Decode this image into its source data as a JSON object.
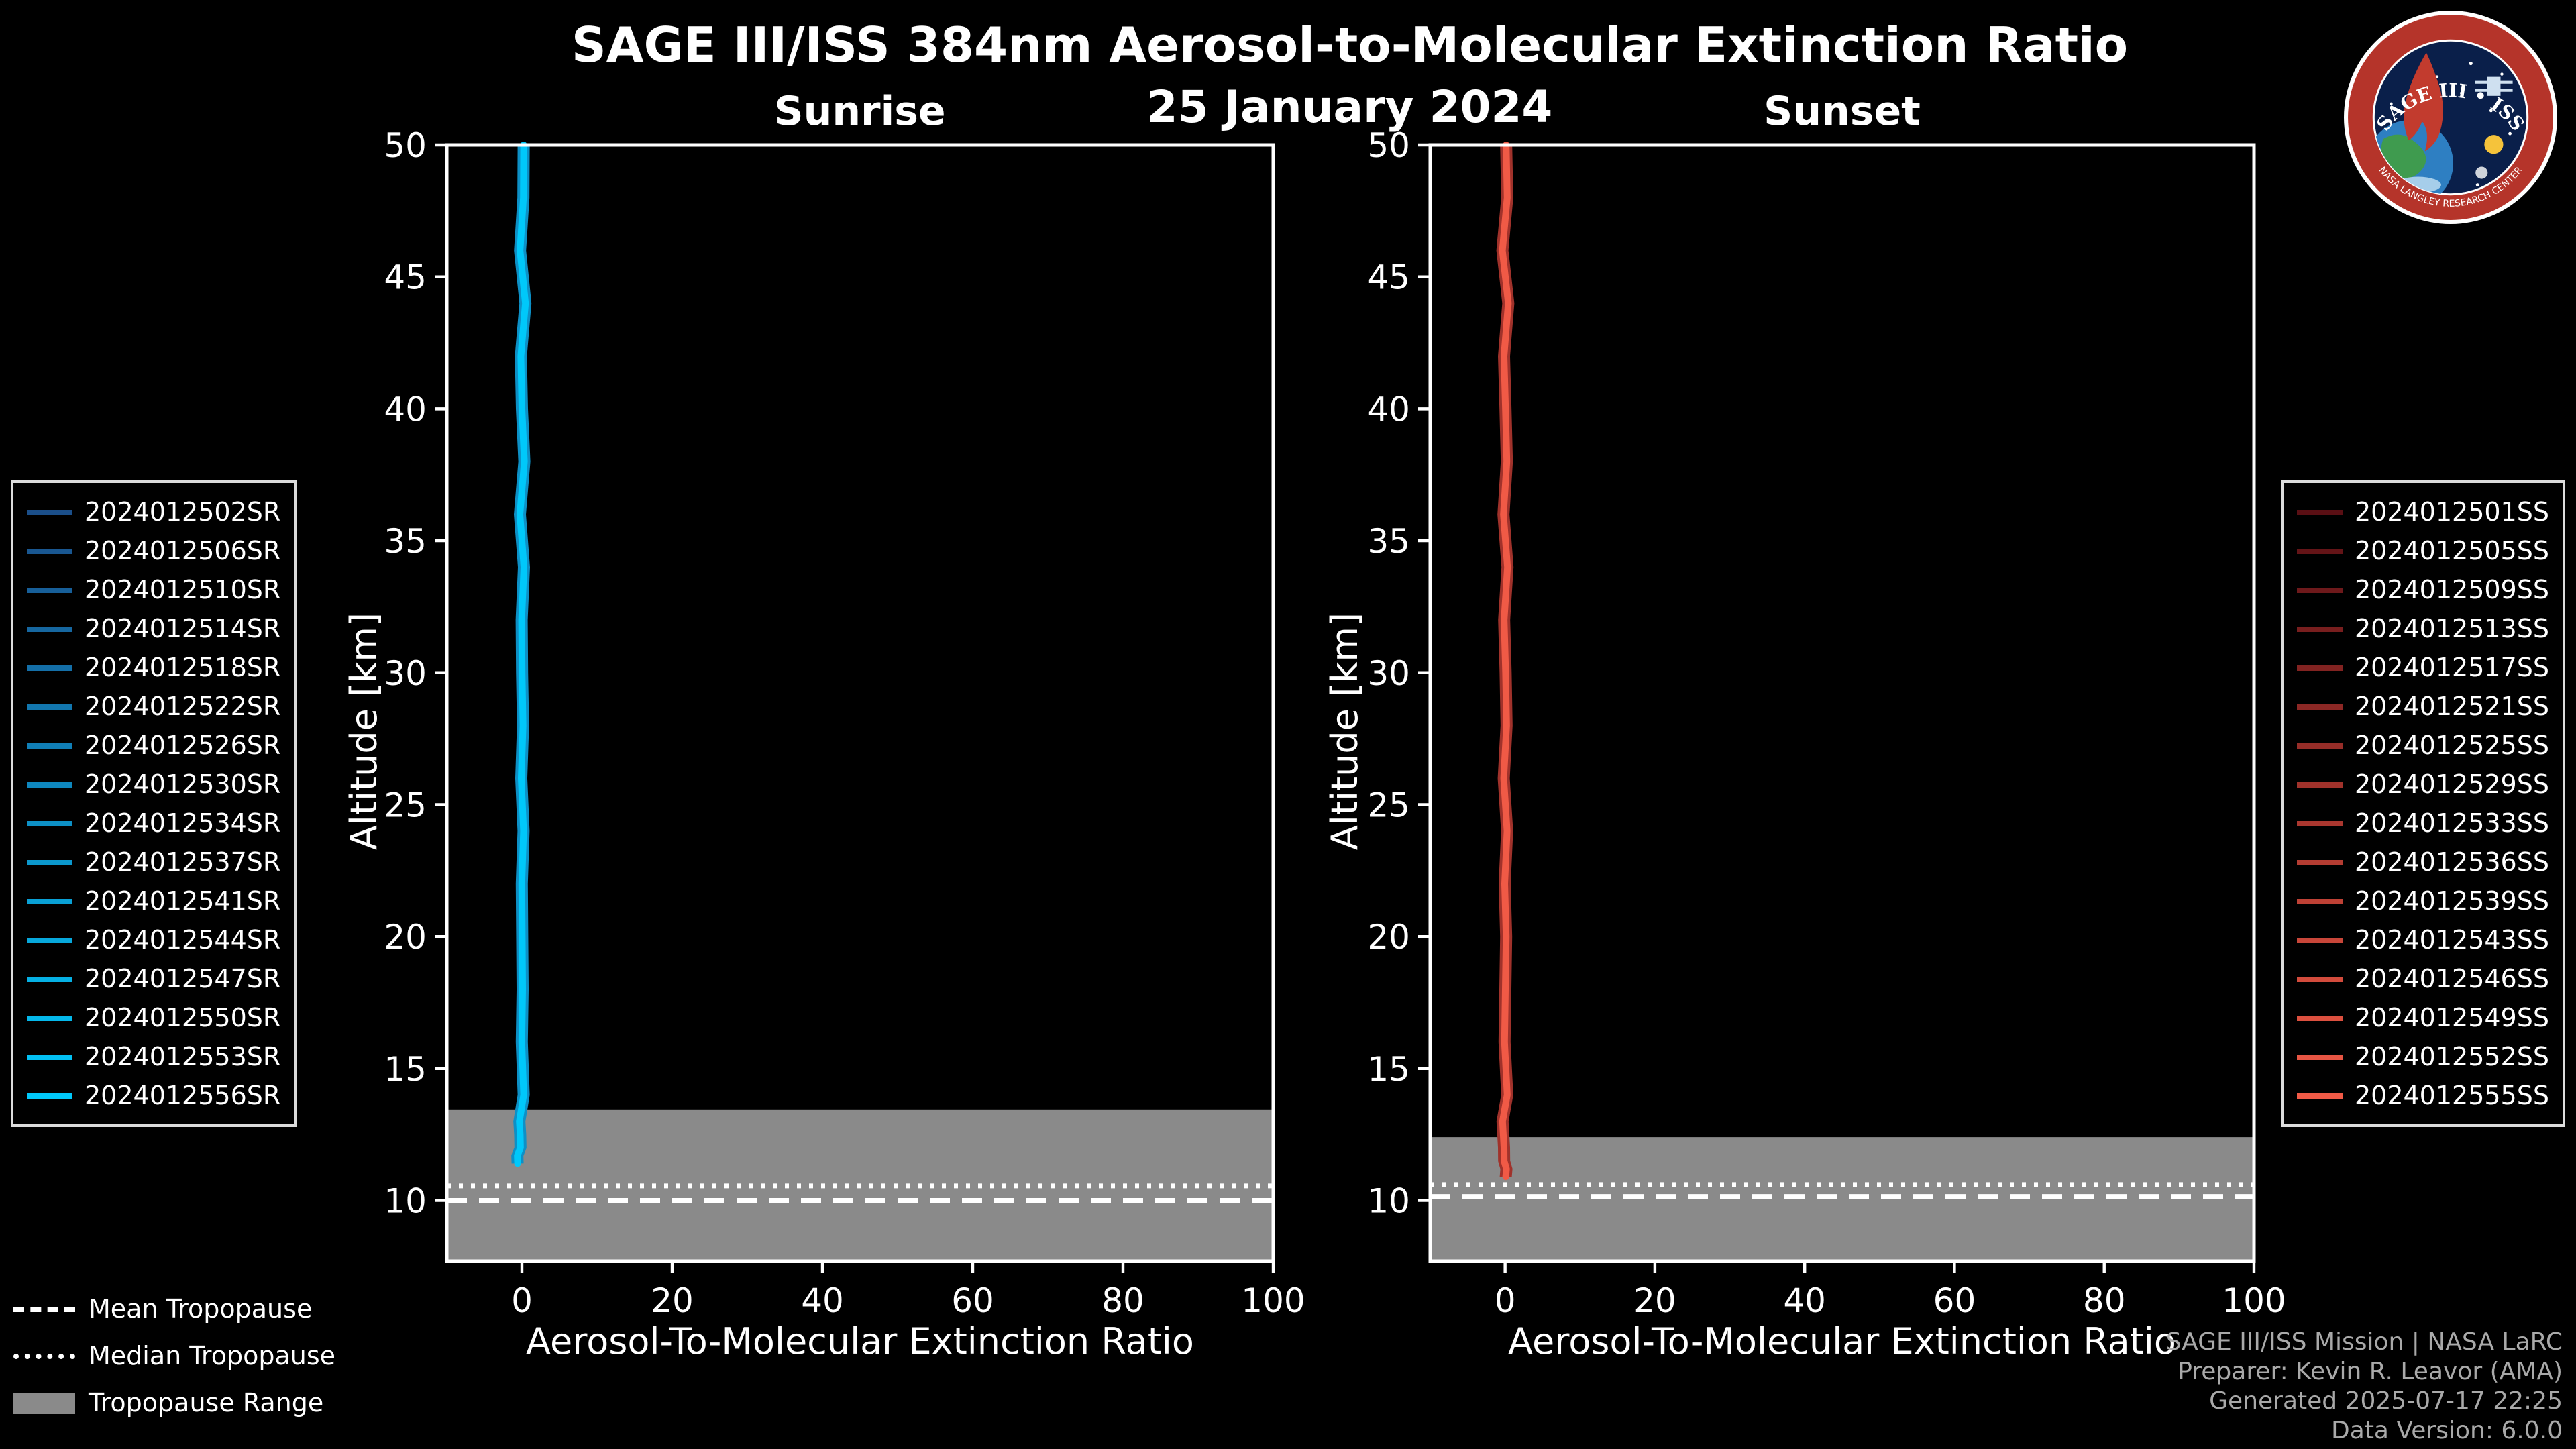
{
  "title": "SAGE III/ISS 384nm Aerosol-to-Molecular Extinction Ratio",
  "date": "25 January 2024",
  "logo": {
    "title": "SAGE III • ISS",
    "ring_text": "NASA LANGLEY RESEARCH CENTER"
  },
  "colors": {
    "background": "#000000",
    "foreground": "#ffffff",
    "tropopause_band": "#8a8a8a",
    "sunrise_line": "#00c8fa",
    "sunrise_shadow": "#0d90c6",
    "sunset_line": "#f05a46",
    "sunset_shadow": "#a0322b",
    "footer_text": "#a9a9a9"
  },
  "chart_data": [
    {
      "type": "line",
      "title": "Sunrise",
      "xlabel": "Aerosol-To-Molecular Extinction Ratio",
      "ylabel": "Altitude [km]",
      "xlim": [
        -10,
        100
      ],
      "ylim": [
        7.7,
        50
      ],
      "xticks": [
        0,
        20,
        40,
        60,
        80,
        100
      ],
      "yticks": [
        10,
        15,
        20,
        25,
        30,
        35,
        40,
        45,
        50
      ],
      "grid": false,
      "legend_position": "outside-left",
      "tropopause": {
        "mean_km": 10.0,
        "median_km": 10.55,
        "range_top_km": 13.45,
        "range_bottom_km": 7.7
      },
      "series": [
        {
          "name": "sunrise ensemble extinction-ratio profiles (16 events, ratio ~0 at all altitudes)",
          "color": "#00c8fa",
          "points_alt_ratio": [
            [
              50,
              0.1
            ],
            [
              48,
              0.0
            ],
            [
              46,
              0.15
            ],
            [
              44,
              0.05
            ],
            [
              42,
              0.1
            ],
            [
              40,
              0.0
            ],
            [
              38,
              0.1
            ],
            [
              36,
              0.05
            ],
            [
              34,
              0.0
            ],
            [
              32,
              0.1
            ],
            [
              30,
              0.05
            ],
            [
              28,
              0.0
            ],
            [
              26,
              0.1
            ],
            [
              24,
              0.05
            ],
            [
              22,
              0.1
            ],
            [
              20,
              0.0
            ],
            [
              18,
              0.05
            ],
            [
              16,
              0.1
            ],
            [
              14,
              0.05
            ],
            [
              13,
              0.0
            ],
            [
              12.5,
              0.1
            ],
            [
              12,
              0.0
            ],
            [
              11.7,
              -0.3
            ],
            [
              11.4,
              -0.6
            ]
          ]
        }
      ]
    },
    {
      "type": "line",
      "title": "Sunset",
      "xlabel": "Aerosol-To-Molecular Extinction Ratio",
      "ylabel": "Altitude [km]",
      "xlim": [
        -10,
        100
      ],
      "ylim": [
        7.7,
        50
      ],
      "xticks": [
        0,
        20,
        40,
        60,
        80,
        100
      ],
      "yticks": [
        10,
        15,
        20,
        25,
        30,
        35,
        40,
        45,
        50
      ],
      "grid": false,
      "legend_position": "outside-right",
      "tropopause": {
        "mean_km": 10.15,
        "median_km": 10.6,
        "range_top_km": 12.4,
        "range_bottom_km": 7.7
      },
      "series": [
        {
          "name": "sunset ensemble extinction-ratio profiles (16 events, ratio ~0 at all altitudes)",
          "color": "#f05a46",
          "points_alt_ratio": [
            [
              50,
              0.0
            ],
            [
              48,
              0.1
            ],
            [
              46,
              0.05
            ],
            [
              44,
              0.0
            ],
            [
              42,
              0.1
            ],
            [
              40,
              0.05
            ],
            [
              38,
              0.0
            ],
            [
              36,
              0.1
            ],
            [
              34,
              0.05
            ],
            [
              32,
              0.0
            ],
            [
              30,
              0.1
            ],
            [
              28,
              0.05
            ],
            [
              26,
              0.0
            ],
            [
              24,
              0.1
            ],
            [
              22,
              0.05
            ],
            [
              20,
              0.1
            ],
            [
              18,
              0.0
            ],
            [
              16,
              0.05
            ],
            [
              14,
              0.1
            ],
            [
              13,
              0.0
            ],
            [
              12,
              0.05
            ],
            [
              11.5,
              0.0
            ],
            [
              11.2,
              -0.2
            ],
            [
              10.9,
              -0.5
            ]
          ]
        }
      ]
    }
  ],
  "legend_sunrise": {
    "items": [
      {
        "label": "2024012502SR",
        "color": "#1b4f8a"
      },
      {
        "label": "2024012506SR",
        "color": "#195791"
      },
      {
        "label": "2024012510SR",
        "color": "#175f99"
      },
      {
        "label": "2024012514SR",
        "color": "#1667a0"
      },
      {
        "label": "2024012518SR",
        "color": "#146fa8"
      },
      {
        "label": "2024012522SR",
        "color": "#1277af"
      },
      {
        "label": "2024012526SR",
        "color": "#107fb7"
      },
      {
        "label": "2024012530SR",
        "color": "#0e87be"
      },
      {
        "label": "2024012534SR",
        "color": "#0d90c6"
      },
      {
        "label": "2024012537SR",
        "color": "#0b98cd"
      },
      {
        "label": "2024012541SR",
        "color": "#09a0d5"
      },
      {
        "label": "2024012544SR",
        "color": "#07a8dc"
      },
      {
        "label": "2024012547SR",
        "color": "#05b0e4"
      },
      {
        "label": "2024012550SR",
        "color": "#04b8eb"
      },
      {
        "label": "2024012553SR",
        "color": "#02c0f3"
      },
      {
        "label": "2024012556SR",
        "color": "#00c8fa"
      }
    ]
  },
  "legend_sunset": {
    "items": [
      {
        "label": "2024012501SS",
        "color": "#5a0f14"
      },
      {
        "label": "2024012505SS",
        "color": "#641417"
      },
      {
        "label": "2024012509SS",
        "color": "#6e191b"
      },
      {
        "label": "2024012513SS",
        "color": "#781e1e"
      },
      {
        "label": "2024012517SS",
        "color": "#822321"
      },
      {
        "label": "2024012521SS",
        "color": "#8c2825"
      },
      {
        "label": "2024012525SS",
        "color": "#962d28"
      },
      {
        "label": "2024012529SS",
        "color": "#a0322b"
      },
      {
        "label": "2024012533SS",
        "color": "#aa372f"
      },
      {
        "label": "2024012536SS",
        "color": "#b43c32"
      },
      {
        "label": "2024012539SS",
        "color": "#be4135"
      },
      {
        "label": "2024012543SS",
        "color": "#c84639"
      },
      {
        "label": "2024012546SS",
        "color": "#d24b3c"
      },
      {
        "label": "2024012549SS",
        "color": "#dc503f"
      },
      {
        "label": "2024012552SS",
        "color": "#e65543"
      },
      {
        "label": "2024012555SS",
        "color": "#f05a46"
      }
    ]
  },
  "tropopause_legend": {
    "mean_label": "Mean Tropopause",
    "median_label": "Median Tropopause",
    "range_label": "Tropopause Range"
  },
  "footer": {
    "line1": "SAGE III/ISS Mission | NASA LaRC",
    "line2": "Preparer: Kevin R. Leavor (AMA)",
    "line3": "Generated 2025-07-17 22:25",
    "line4": "Data Version: 6.0.0"
  }
}
